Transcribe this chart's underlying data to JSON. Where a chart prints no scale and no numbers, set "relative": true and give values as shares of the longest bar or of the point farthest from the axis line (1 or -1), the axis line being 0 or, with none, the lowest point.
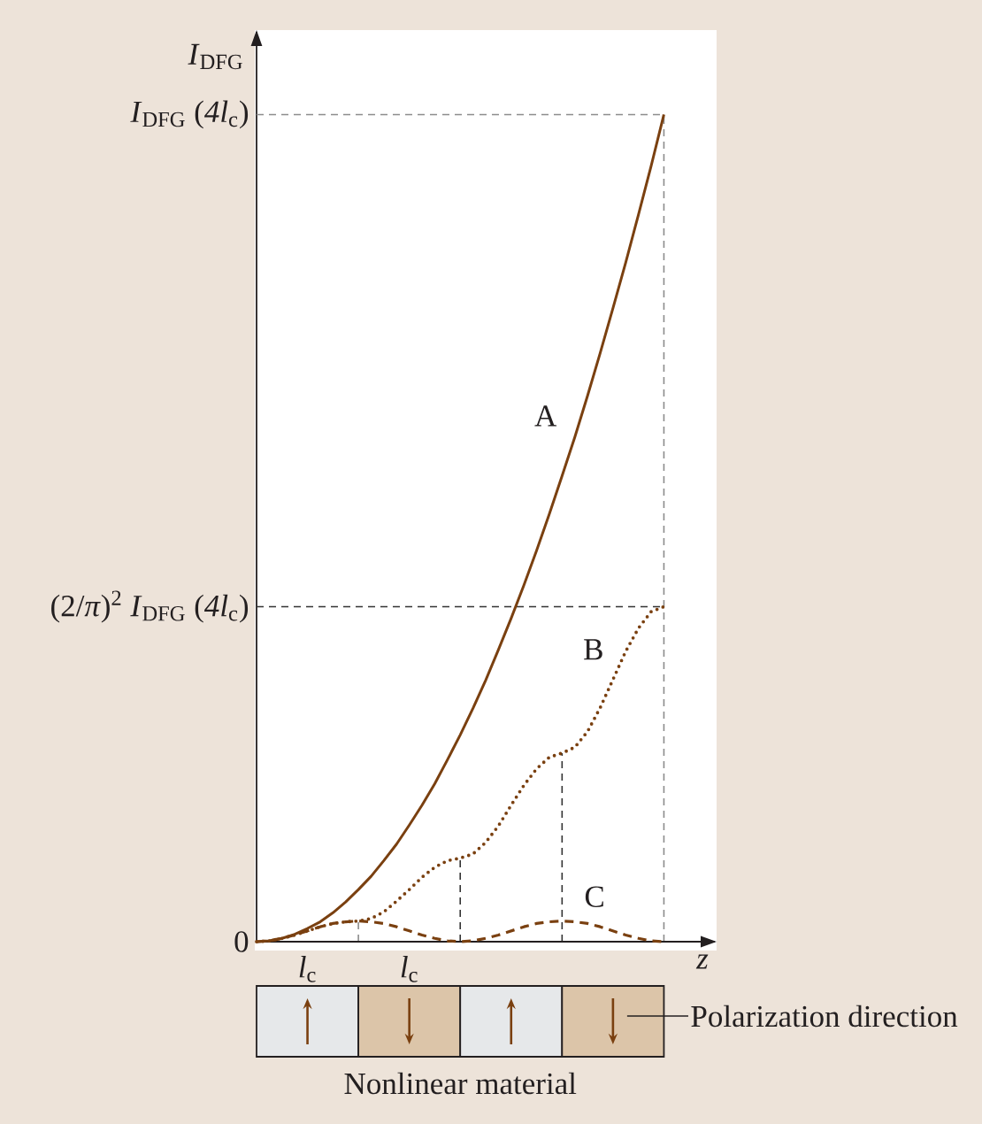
{
  "chart_data": {
    "type": "line",
    "relative": true,
    "xlabel": "z",
    "ylabel": "*I*$_{DFG}$",
    "categories": [
      null,
      null,
      null,
      null,
      "*l*$_{c}$",
      null,
      null,
      null,
      null,
      null,
      null,
      null,
      "*l*$_{c}$",
      null,
      null,
      null,
      null,
      null,
      null,
      null,
      null,
      null,
      null,
      null,
      null,
      null,
      null,
      null,
      null,
      null,
      null,
      null,
      null
    ],
    "series": [
      {
        "name": "A",
        "color": "#7a4010",
        "line_style": "solid",
        "values": [
          0,
          0.001,
          0.004,
          0.009,
          0.016,
          0.024,
          0.035,
          0.048,
          0.063,
          0.079,
          0.098,
          0.118,
          0.141,
          0.165,
          0.191,
          0.22,
          0.25,
          0.282,
          0.316,
          0.353,
          0.391,
          0.431,
          0.473,
          0.517,
          0.563,
          0.61,
          0.66,
          0.712,
          0.766,
          0.821,
          0.879,
          0.938,
          1
        ]
      },
      {
        "name": "B",
        "color": "#7a4010",
        "line_style": "dotted",
        "values": [
          0,
          0.001,
          0.004,
          0.008,
          0.013,
          0.018,
          0.022,
          0.024,
          0.025,
          0.028,
          0.036,
          0.049,
          0.063,
          0.078,
          0.09,
          0.098,
          0.101,
          0.106,
          0.12,
          0.14,
          0.165,
          0.189,
          0.209,
          0.223,
          0.228,
          0.235,
          0.254,
          0.283,
          0.317,
          0.351,
          0.379,
          0.399,
          0.405
        ]
      },
      {
        "name": "C",
        "color": "#7a4010",
        "line_style": "dashed",
        "values": [
          0,
          0.001,
          0.004,
          0.008,
          0.013,
          0.018,
          0.022,
          0.024,
          0.025,
          0.024,
          0.022,
          0.018,
          0.013,
          0.008,
          0.004,
          0.001,
          0,
          0.001,
          0.004,
          0.008,
          0.013,
          0.018,
          0.022,
          0.024,
          0.025,
          0.024,
          0.022,
          0.018,
          0.013,
          0.008,
          0.004,
          0.001,
          0
        ]
      }
    ],
    "ref_lines": [
      {
        "axis": "y",
        "value": 1,
        "label": "*I*$_{DFG}$ (*4l*$_{c}$)",
        "color": "#8c8c8c",
        "line_style": "dashed"
      },
      {
        "axis": "y",
        "value": 0.405,
        "label": "(2/*π*)$^{2}$ *I*$_{DFG}$ (*4l*$_{c}$)",
        "color": "#333333",
        "line_style": "dashed"
      }
    ],
    "annotations": [
      "0",
      "Polarization direction",
      "Nonlinear material"
    ]
  }
}
